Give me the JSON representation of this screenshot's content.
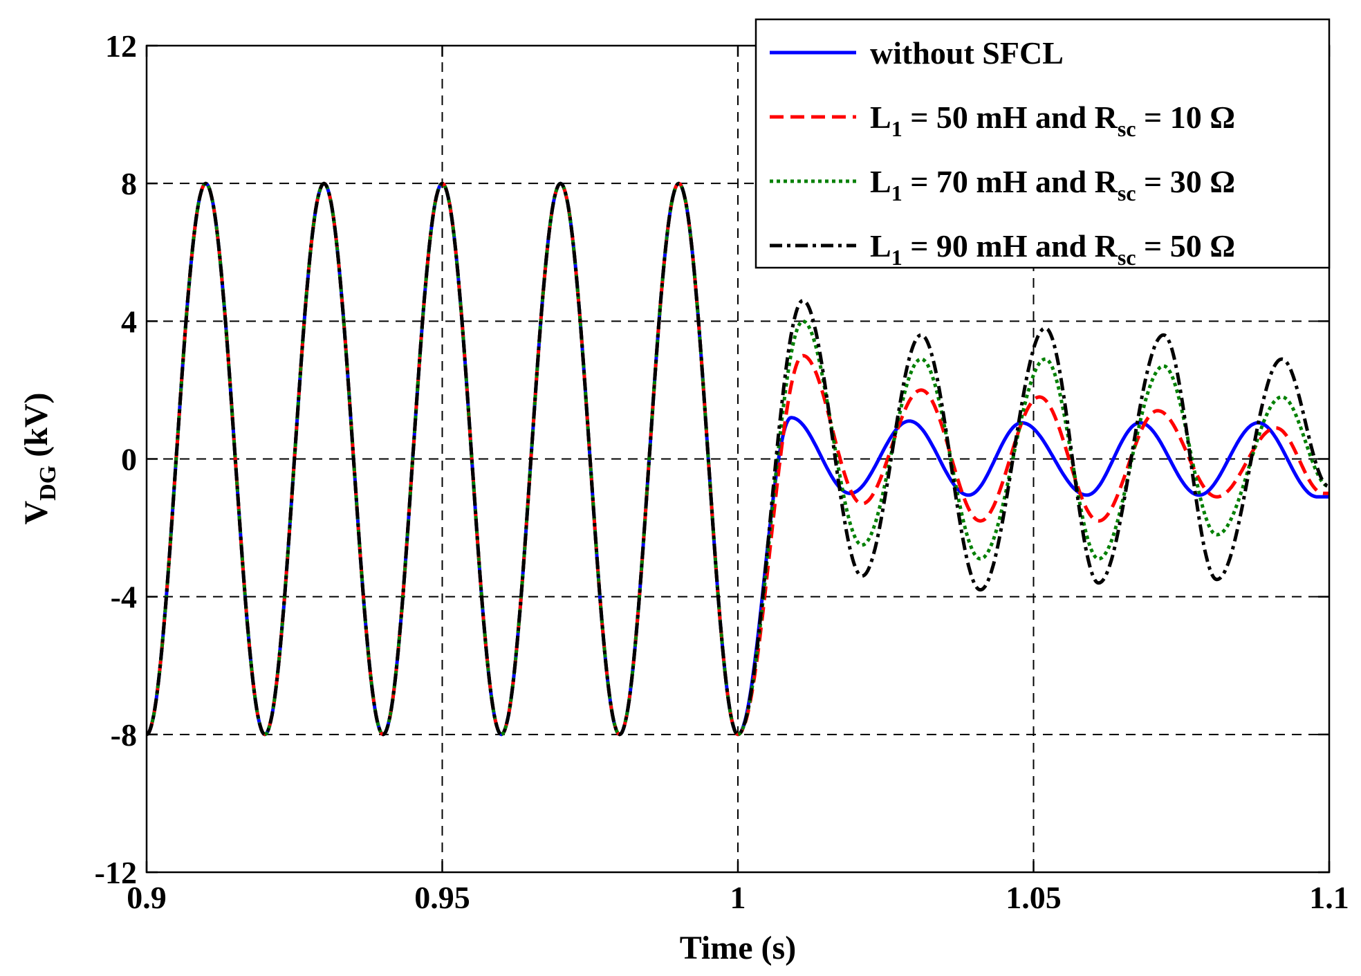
{
  "chart_data": {
    "type": "line",
    "title": "",
    "xlabel": "Time (s)",
    "ylabel": {
      "main": "V",
      "sub": "DG",
      "unit": " (kV)"
    },
    "xlim": [
      0.9,
      1.1
    ],
    "ylim": [
      -12,
      12
    ],
    "grid": true,
    "legend_position": "top-right",
    "x_ticks": [
      0.9,
      0.95,
      1.0,
      1.05,
      1.1
    ],
    "x_tick_labels": [
      "0.9",
      "0.95",
      "1",
      "1.05",
      "1.1"
    ],
    "y_ticks": [
      -12,
      -8,
      -4,
      0,
      4,
      8,
      12
    ],
    "y_tick_labels": [
      "-12",
      "-8",
      "-4",
      "0",
      "4",
      "8",
      "12"
    ],
    "fault_time": 1.0,
    "pre_fault": {
      "frequency_hz": 50,
      "amplitude_kv": 8,
      "peak_times": [
        0.91,
        0.93,
        0.95,
        0.97,
        0.99
      ],
      "trough_times": [
        0.92,
        0.94,
        0.96,
        0.98,
        1.0
      ]
    },
    "series": [
      {
        "name": "without SFCL",
        "legend": {
          "pre": "without SFCL",
          "l_sub": "",
          "mid": "",
          "r_sub": "",
          "post": ""
        },
        "color": "#0000ff",
        "dash": "solid",
        "post_fault_peaks": [
          [
            1.009,
            1.2
          ],
          [
            1.029,
            1.1
          ],
          [
            1.048,
            1.05
          ],
          [
            1.068,
            1.05
          ],
          [
            1.088,
            1.05
          ]
        ],
        "post_fault_troughs": [
          [
            1.019,
            -1.0
          ],
          [
            1.039,
            -1.05
          ],
          [
            1.059,
            -1.05
          ],
          [
            1.078,
            -1.05
          ],
          [
            1.098,
            -1.1
          ]
        ]
      },
      {
        "name": "L1 = 50 mH and Rsc = 10 Ω",
        "legend": {
          "pre": "L",
          "l_sub": "1",
          "mid": " = 50 mH and R",
          "r_sub": "sc",
          "post": " = 10 Ω"
        },
        "color": "#ff0000",
        "dash": "dashed",
        "post_fault_peaks": [
          [
            1.011,
            3.0
          ],
          [
            1.031,
            2.0
          ],
          [
            1.051,
            1.8
          ],
          [
            1.071,
            1.4
          ],
          [
            1.091,
            0.9
          ]
        ],
        "post_fault_troughs": [
          [
            1.021,
            -1.3
          ],
          [
            1.041,
            -1.8
          ],
          [
            1.061,
            -1.8
          ],
          [
            1.081,
            -1.1
          ],
          [
            1.099,
            -1.0
          ]
        ]
      },
      {
        "name": "L1 = 70 mH and Rsc = 30 Ω",
        "legend": {
          "pre": "L",
          "l_sub": "1",
          "mid": " = 70 mH and R",
          "r_sub": "sc",
          "post": " = 30 Ω"
        },
        "color": "#008000",
        "dash": "dotted",
        "post_fault_peaks": [
          [
            1.011,
            4.0
          ],
          [
            1.031,
            2.9
          ],
          [
            1.052,
            2.9
          ],
          [
            1.072,
            2.7
          ],
          [
            1.092,
            1.8
          ]
        ],
        "post_fault_troughs": [
          [
            1.021,
            -2.5
          ],
          [
            1.041,
            -2.9
          ],
          [
            1.061,
            -2.9
          ],
          [
            1.081,
            -2.2
          ],
          [
            1.1,
            -0.8
          ]
        ]
      },
      {
        "name": "L1 = 90 mH and Rsc = 50 Ω",
        "legend": {
          "pre": "L",
          "l_sub": "1",
          "mid": " = 90 mH and R",
          "r_sub": "sc",
          "post": " = 50 Ω"
        },
        "color": "#000000",
        "dash": "dashdot",
        "post_fault_peaks": [
          [
            1.011,
            4.6
          ],
          [
            1.031,
            3.6
          ],
          [
            1.052,
            3.8
          ],
          [
            1.072,
            3.6
          ],
          [
            1.092,
            2.9
          ]
        ],
        "post_fault_troughs": [
          [
            1.021,
            -3.4
          ],
          [
            1.041,
            -3.8
          ],
          [
            1.061,
            -3.6
          ],
          [
            1.081,
            -3.5
          ],
          [
            1.1,
            -0.8
          ]
        ]
      }
    ]
  }
}
